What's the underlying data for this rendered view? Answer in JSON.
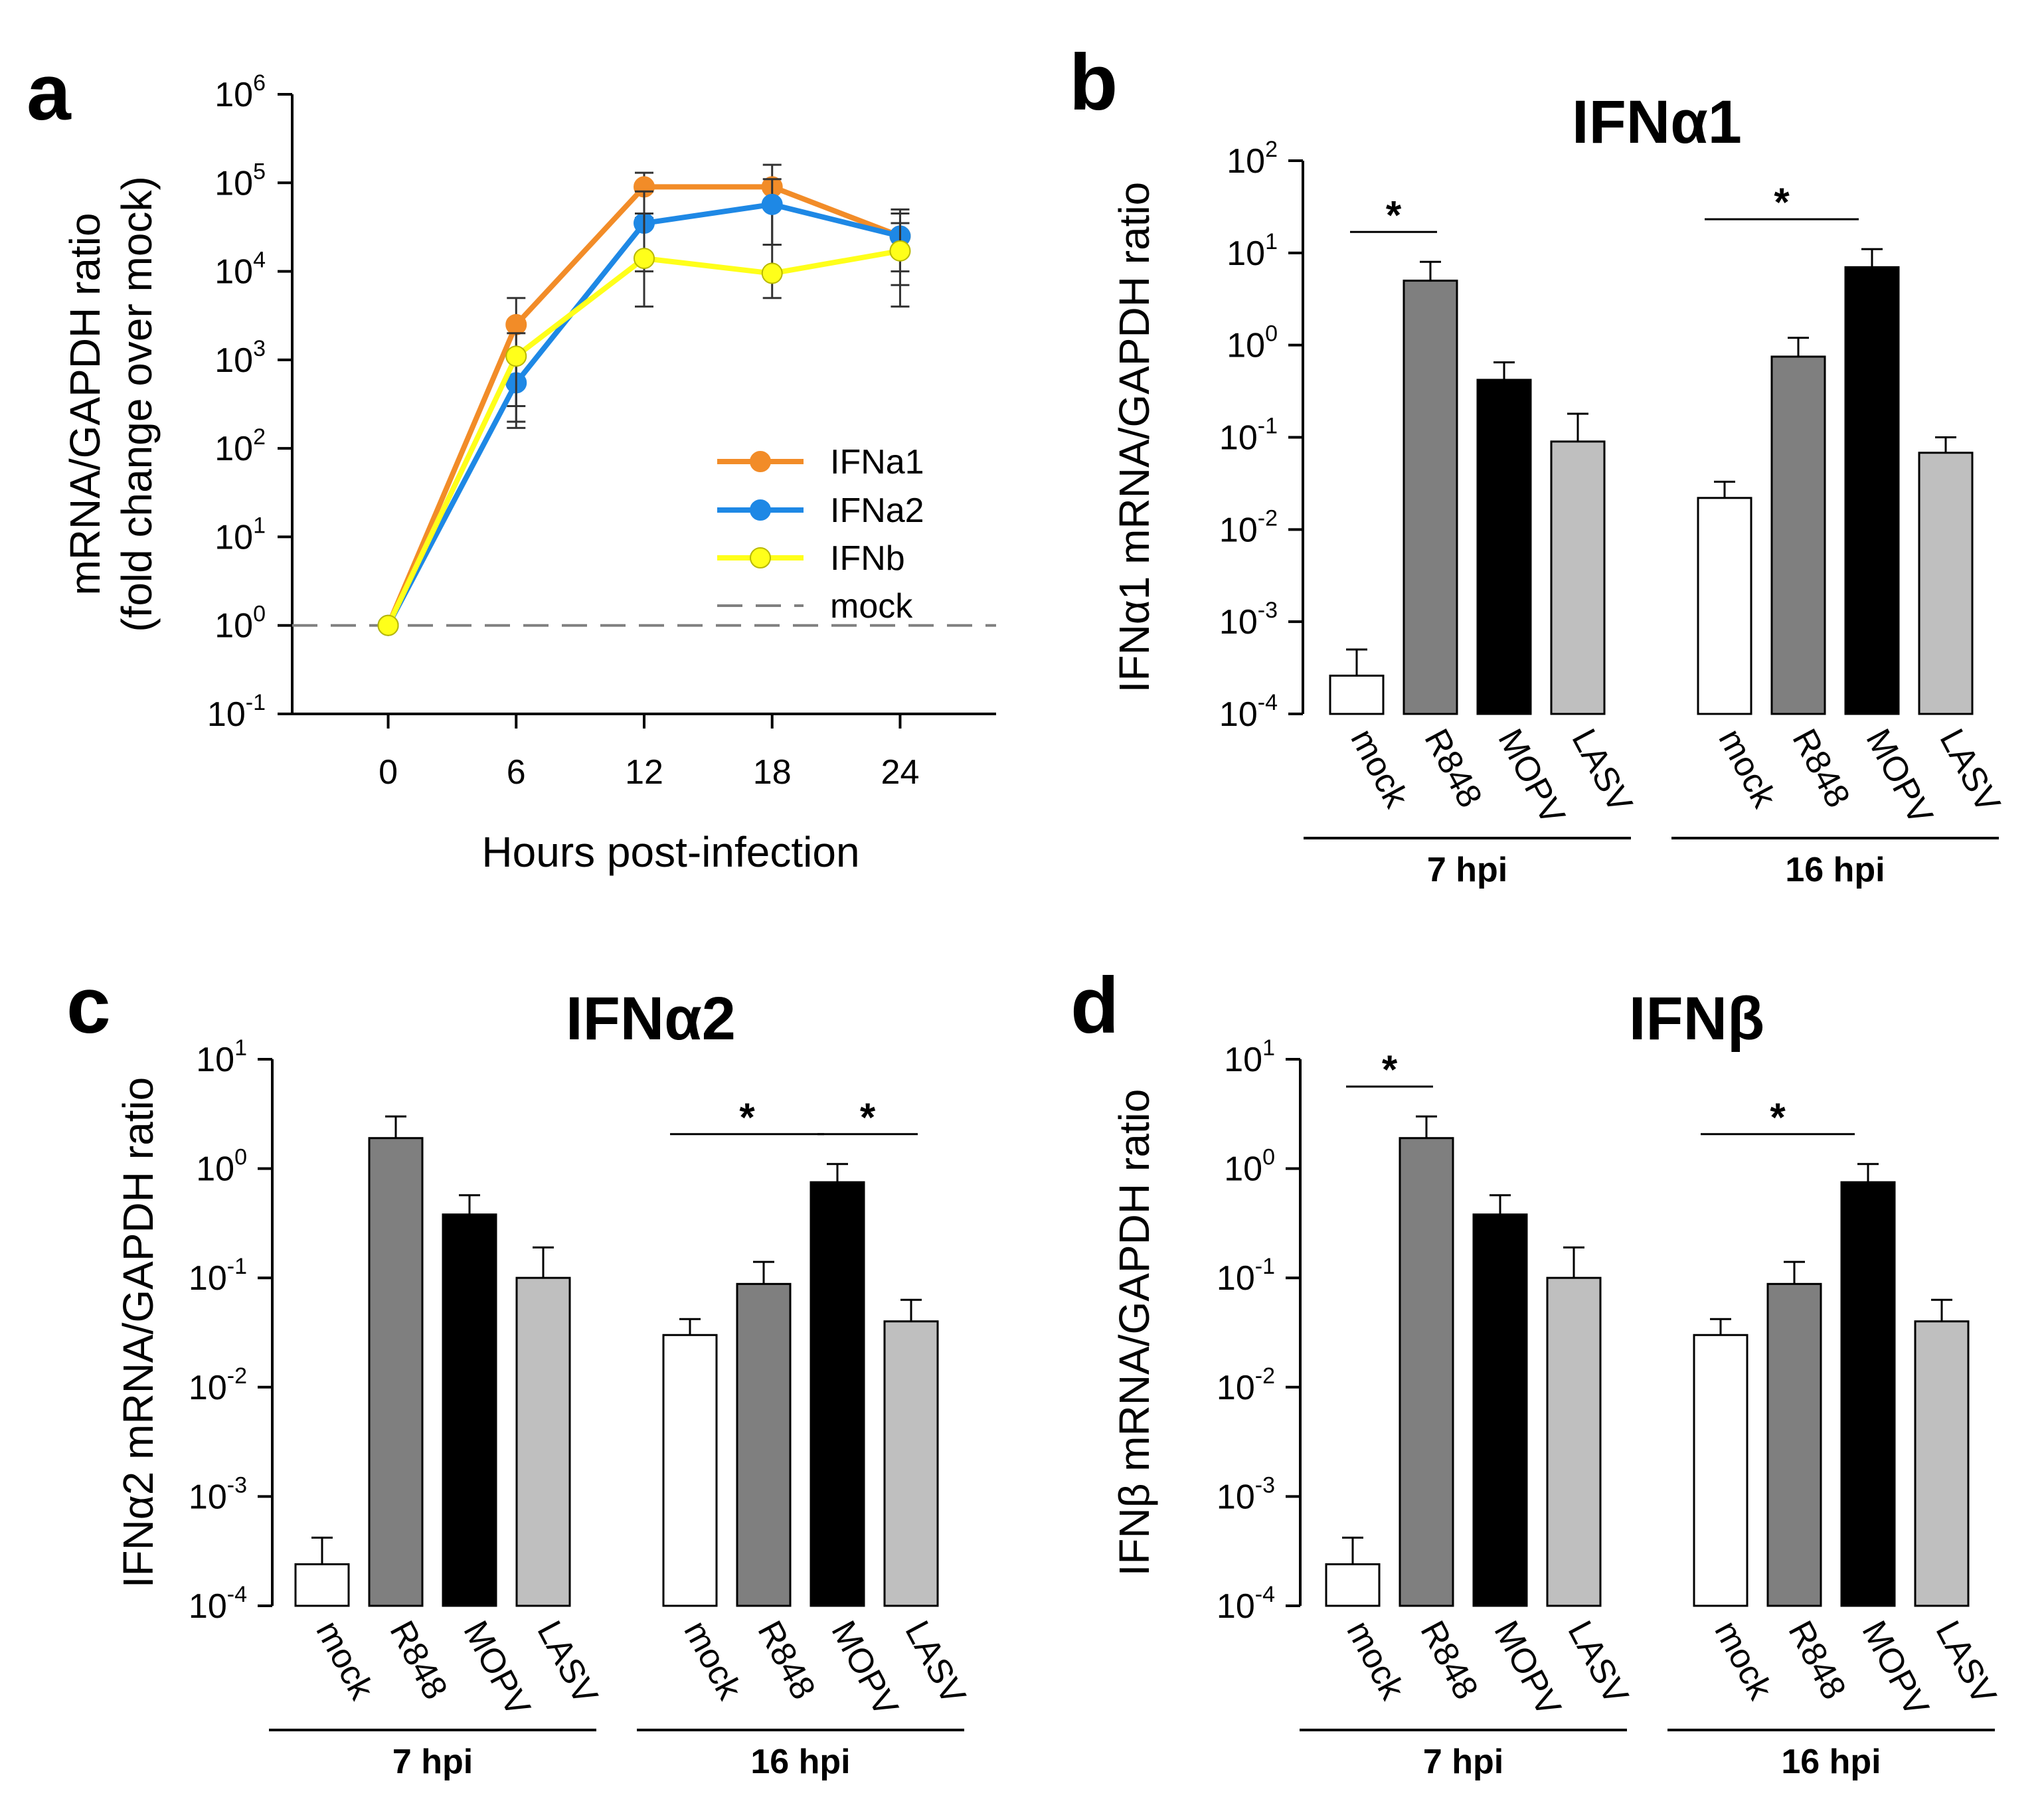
{
  "chart_data": [
    {
      "panel": "a",
      "type": "line",
      "title": "",
      "xlabel": "Hours post-infection",
      "ylabel_lines": [
        "mRNA/GAPDH ratio",
        "(fold change over mock)"
      ],
      "x": [
        0,
        6,
        12,
        18,
        24
      ],
      "x_tick_labels": [
        "0",
        "6",
        "12",
        "18",
        "24"
      ],
      "yscale": "log",
      "ylim_exp": [
        -1,
        6
      ],
      "y_tick_exponents": [
        "-1",
        "0",
        "1",
        "2",
        "3",
        "4",
        "5",
        "6"
      ],
      "y_tick_base": "10",
      "series": [
        {
          "name": "IFNa1",
          "color": "#F28C28",
          "values": [
            1,
            2500,
            90000,
            90000,
            25000
          ],
          "err_hi": [
            1,
            5000,
            130000,
            160000,
            50000
          ],
          "err_lo": [
            1,
            300,
            40000,
            20000,
            10000
          ]
        },
        {
          "name": "IFNa2",
          "color": "#1E88E5",
          "values": [
            1,
            550,
            35000,
            57000,
            25000
          ],
          "err_hi": [
            1,
            1000,
            80000,
            110000,
            45000
          ],
          "err_lo": [
            1,
            200,
            10000,
            20000,
            7000
          ]
        },
        {
          "name": "IFNb",
          "color": "#FFFF1A",
          "values": [
            1,
            1100,
            14000,
            9500,
            17000
          ],
          "err_hi": [
            1,
            2000,
            45000,
            20000,
            35000
          ],
          "err_lo": [
            1,
            170,
            4000,
            5000,
            4000
          ]
        }
      ],
      "reference": {
        "name": "mock",
        "value": 1
      }
    },
    {
      "panel": "b",
      "type": "bar",
      "title": "IFNα1",
      "ylabel": "IFNα1 mRNA/GAPDH ratio",
      "yscale": "log",
      "ylim_exp": [
        -4,
        2
      ],
      "y_tick_exponents": [
        "-4",
        "-3",
        "-2",
        "-1",
        "0",
        "1",
        "2"
      ],
      "y_tick_base": "10",
      "categories": [
        "mock",
        "R848",
        "MOPV",
        "LASV",
        "mock",
        "R848",
        "MOPV",
        "LASV"
      ],
      "groups": [
        "7 hpi",
        "16 hpi"
      ],
      "values": [
        0.00026,
        5.0,
        0.42,
        0.09,
        0.022,
        0.75,
        7.0,
        0.068
      ],
      "err_hi": [
        0.0005,
        8.0,
        0.65,
        0.18,
        0.033,
        1.2,
        11.0,
        0.1
      ],
      "colors": [
        "#FFFFFF",
        "#7F7F7F",
        "#000000",
        "#BFBFBF",
        "#FFFFFF",
        "#7F7F7F",
        "#000000",
        "#BFBFBF"
      ],
      "significance": [
        {
          "from": 0,
          "to": 1,
          "label": "*"
        },
        {
          "from": 4,
          "to": 6,
          "label": "*"
        }
      ]
    },
    {
      "panel": "c",
      "type": "bar",
      "title": "IFNα2",
      "ylabel": "IFNα2 mRNA/GAPDH ratio",
      "yscale": "log",
      "ylim_exp": [
        -4,
        1
      ],
      "y_tick_exponents": [
        "-4",
        "-3",
        "-2",
        "-1",
        "0",
        "1"
      ],
      "y_tick_base": "10",
      "categories": [
        "mock",
        "R848",
        "MOPV",
        "LASV",
        "mock",
        "R848",
        "MOPV",
        "LASV"
      ],
      "groups": [
        "7 hpi",
        "16 hpi"
      ],
      "values": [
        0.00024,
        1.9,
        0.38,
        0.1,
        0.03,
        0.088,
        0.75,
        0.04
      ],
      "err_hi": [
        0.00042,
        3.0,
        0.57,
        0.19,
        0.042,
        0.14,
        1.1,
        0.063
      ],
      "colors": [
        "#FFFFFF",
        "#7F7F7F",
        "#000000",
        "#BFBFBF",
        "#FFFFFF",
        "#7F7F7F",
        "#000000",
        "#BFBFBF"
      ],
      "significance": [
        {
          "from": 4,
          "to": 6,
          "label": "*"
        },
        {
          "from": 6,
          "to": 7,
          "label": "*"
        }
      ]
    },
    {
      "panel": "d",
      "type": "bar",
      "title": "IFNβ",
      "ylabel": "IFNβ mRNA/GAPDH ratio",
      "yscale": "log",
      "ylim_exp": [
        -4,
        1
      ],
      "y_tick_exponents": [
        "-4",
        "-3",
        "-2",
        "-1",
        "0",
        "1"
      ],
      "y_tick_base": "10",
      "categories": [
        "mock",
        "R848",
        "MOPV",
        "LASV",
        "mock",
        "R848",
        "MOPV",
        "LASV"
      ],
      "groups": [
        "7 hpi",
        "16 hpi"
      ],
      "values": [
        0.00024,
        1.9,
        0.38,
        0.1,
        0.03,
        0.088,
        0.75,
        0.04
      ],
      "err_hi": [
        0.00042,
        3.0,
        0.57,
        0.19,
        0.042,
        0.14,
        1.1,
        0.063
      ],
      "colors": [
        "#FFFFFF",
        "#7F7F7F",
        "#000000",
        "#BFBFBF",
        "#FFFFFF",
        "#7F7F7F",
        "#000000",
        "#BFBFBF"
      ],
      "significance": [
        {
          "from": 0,
          "to": 1,
          "label": "*"
        },
        {
          "from": 4,
          "to": 6,
          "label": "*"
        }
      ]
    }
  ]
}
